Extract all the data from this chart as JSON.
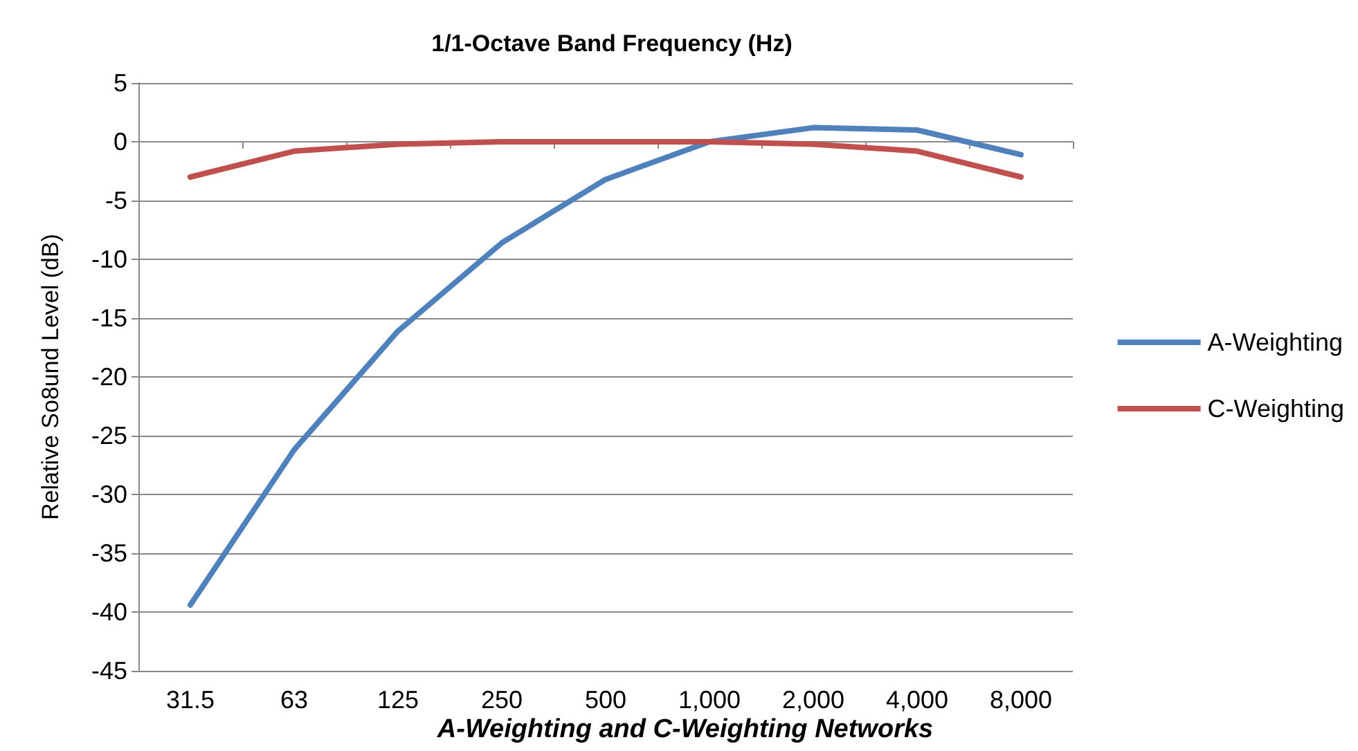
{
  "chart_data": {
    "type": "line",
    "title": "A-Weighting and C-Weighting Networks",
    "xlabel": "1/1-Octave Band Frequency (Hz)",
    "ylabel": "Relative So8und Level (dB)",
    "categories": [
      "31.5",
      "63",
      "125",
      "250",
      "500",
      "1,000",
      "2,000",
      "4,000",
      "8,000"
    ],
    "series": [
      {
        "name": "A-Weighting",
        "color": "#4f81bd",
        "values": [
          -39.4,
          -26.2,
          -16.1,
          -8.6,
          -3.2,
          0,
          1.2,
          1.0,
          -1.1
        ]
      },
      {
        "name": "C-Weighting",
        "color": "#c0504d",
        "values": [
          -3.0,
          -0.8,
          -0.2,
          0,
          0,
          0,
          -0.2,
          -0.8,
          -3.0
        ]
      }
    ],
    "ylim": [
      -45,
      5
    ],
    "yticks": [
      -45,
      -40,
      -35,
      -30,
      -25,
      -20,
      -15,
      -10,
      -5,
      0,
      5
    ],
    "grid": "y",
    "legend": "right",
    "marker": "none",
    "line_style": "solid"
  }
}
